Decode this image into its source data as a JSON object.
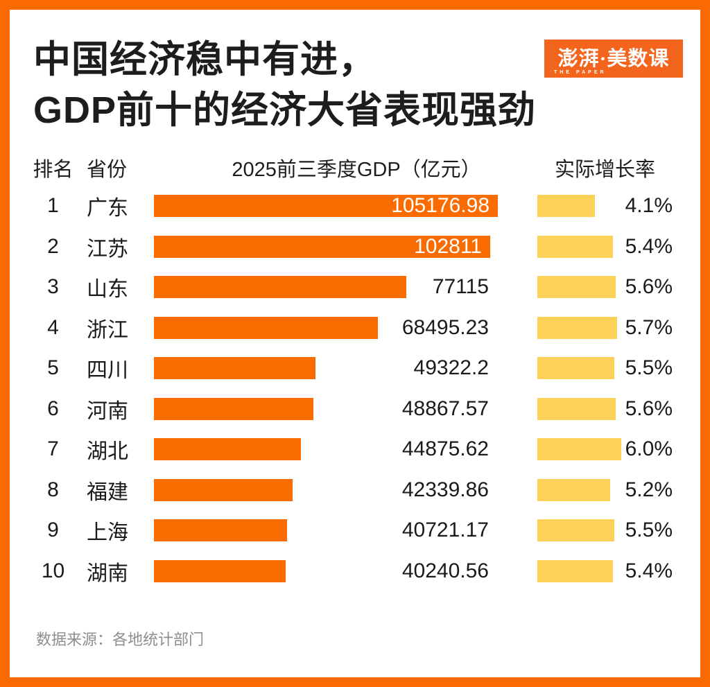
{
  "title": {
    "line1": "中国经济稳中有进，",
    "line2": "GDP前十的经济大省表现强劲"
  },
  "logo": {
    "text": "澎湃·美数课",
    "subtext": "THE PAPER"
  },
  "table": {
    "headers": {
      "rank": "排名",
      "province": "省份",
      "gdp": "2025前三季度GDP（亿元）",
      "growth": "实际增长率"
    },
    "rows": [
      {
        "rank": "1",
        "province": "广东",
        "gdp": 105176.98,
        "gdp_label": "105176.98",
        "label_inside": true,
        "growth": 4.1,
        "growth_label": "4.1%"
      },
      {
        "rank": "2",
        "province": "江苏",
        "gdp": 102811,
        "gdp_label": "102811",
        "label_inside": true,
        "growth": 5.4,
        "growth_label": "5.4%"
      },
      {
        "rank": "3",
        "province": "山东",
        "gdp": 77115,
        "gdp_label": "77115",
        "label_inside": false,
        "growth": 5.6,
        "growth_label": "5.6%"
      },
      {
        "rank": "4",
        "province": "浙江",
        "gdp": 68495.23,
        "gdp_label": "68495.23",
        "label_inside": false,
        "growth": 5.7,
        "growth_label": "5.7%"
      },
      {
        "rank": "5",
        "province": "四川",
        "gdp": 49322.2,
        "gdp_label": "49322.2",
        "label_inside": false,
        "growth": 5.5,
        "growth_label": "5.5%"
      },
      {
        "rank": "6",
        "province": "河南",
        "gdp": 48867.57,
        "gdp_label": "48867.57",
        "label_inside": false,
        "growth": 5.6,
        "growth_label": "5.6%"
      },
      {
        "rank": "7",
        "province": "湖北",
        "gdp": 44875.62,
        "gdp_label": "44875.62",
        "label_inside": false,
        "growth": 6.0,
        "growth_label": "6.0%"
      },
      {
        "rank": "8",
        "province": "福建",
        "gdp": 42339.86,
        "gdp_label": "42339.86",
        "label_inside": false,
        "growth": 5.2,
        "growth_label": "5.2%"
      },
      {
        "rank": "9",
        "province": "上海",
        "gdp": 40721.17,
        "gdp_label": "40721.17",
        "label_inside": false,
        "growth": 5.5,
        "growth_label": "5.5%"
      },
      {
        "rank": "10",
        "province": "湖南",
        "gdp": 40240.56,
        "gdp_label": "40240.56",
        "label_inside": false,
        "growth": 5.4,
        "growth_label": "5.4%"
      }
    ]
  },
  "footer": {
    "source": "数据来源：各地统计部门"
  },
  "colors": {
    "frame_orange": "#FA6A00",
    "bar_orange": "#FA6C00",
    "growth_yellow": "#FCD158",
    "logo_orange": "#F3641C",
    "text_dark": "#1A1A1A",
    "footer_gray": "#8E8E8E"
  },
  "chart_data": {
    "type": "bar",
    "orientation": "horizontal",
    "title": "中国经济稳中有进，GDP前十的经济大省表现强劲",
    "categories": [
      "广东",
      "江苏",
      "山东",
      "浙江",
      "四川",
      "河南",
      "湖北",
      "福建",
      "上海",
      "湖南"
    ],
    "ranks": [
      1,
      2,
      3,
      4,
      5,
      6,
      7,
      8,
      9,
      10
    ],
    "series": [
      {
        "name": "2025前三季度GDP（亿元）",
        "values": [
          105176.98,
          102811,
          77115,
          68495.23,
          49322.2,
          48867.57,
          44875.62,
          42339.86,
          40721.17,
          40240.56
        ]
      },
      {
        "name": "实际增长率",
        "values": [
          4.1,
          5.4,
          5.6,
          5.7,
          5.5,
          5.6,
          6.0,
          5.2,
          5.5,
          5.4
        ],
        "unit": "%"
      }
    ],
    "gdp_axis_max": 105176.98,
    "growth_axis_max": 6.0,
    "grid": false,
    "legend": false,
    "source": "数据来源：各地统计部门"
  }
}
